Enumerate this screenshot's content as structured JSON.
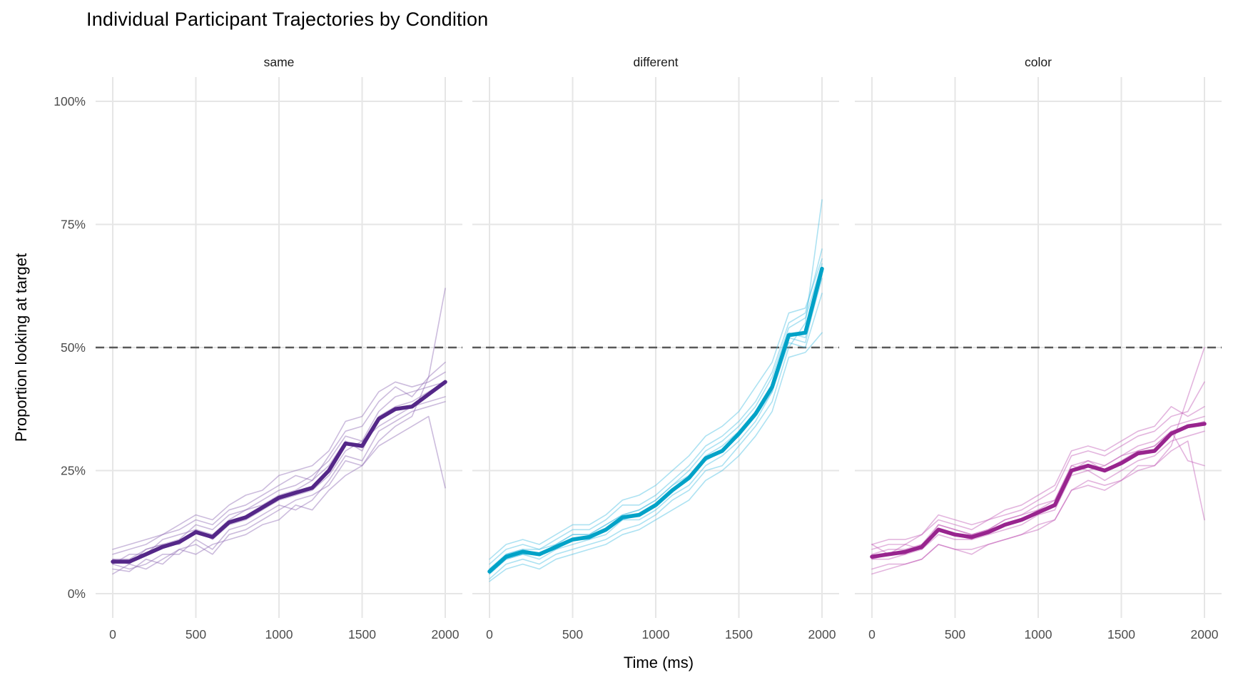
{
  "title": "Individual Participant Trajectories by Condition",
  "axes": {
    "x_label": "Time (ms)",
    "y_label": "Proportion looking at target",
    "x_ticks": [
      "0",
      "500",
      "1000",
      "1500",
      "2000"
    ],
    "x_tick_values": [
      0,
      500,
      1000,
      1500,
      2000
    ],
    "y_ticks": [
      "0%",
      "25%",
      "50%",
      "75%",
      "100%"
    ],
    "y_tick_values": [
      0,
      25,
      50,
      75,
      100
    ],
    "x_range": [
      0,
      2000
    ],
    "y_range": [
      0,
      100
    ]
  },
  "style": {
    "background": "#ffffff",
    "grid_color": "#e6e6e6",
    "tick_label_color": "#4d4d4d",
    "strip_label_color": "#1a1a1a",
    "title_color": "#000000",
    "reference_line_color": "#595959"
  },
  "chart_data": {
    "type": "line",
    "title": "Individual Participant Trajectories by Condition",
    "xlabel": "Time (ms)",
    "ylabel": "Proportion looking at target",
    "x": [
      0,
      100,
      200,
      300,
      400,
      500,
      600,
      700,
      800,
      900,
      1000,
      1100,
      1200,
      1300,
      1400,
      1500,
      1600,
      1700,
      1800,
      1900,
      2000
    ],
    "xlim": [
      0,
      2000
    ],
    "ylim_percent": [
      0,
      100
    ],
    "grid": true,
    "legend": false,
    "reference_line": {
      "value_percent": 50,
      "style": "dashed"
    },
    "facets": [
      {
        "label": "same",
        "mean_color": "#542788",
        "individual_color": "#8f6bb3",
        "mean_percent": [
          6.5,
          6.5,
          8,
          9.5,
          10.5,
          12.5,
          11.5,
          14.5,
          15.5,
          17.5,
          19.5,
          20.5,
          21.5,
          25,
          30.5,
          30,
          35.5,
          37.5,
          38,
          40.5,
          43
        ],
        "individuals_percent": [
          [
            5,
            4.5,
            7,
            6,
            9,
            10,
            8,
            12,
            13,
            15,
            17,
            19,
            20,
            22,
            27,
            26,
            31,
            34,
            36,
            44,
            62
          ],
          [
            8,
            9,
            10,
            12,
            13,
            15,
            14,
            17,
            18,
            20,
            22,
            24,
            23,
            28,
            33,
            34,
            39,
            42,
            40,
            44,
            47
          ],
          [
            6,
            5,
            6,
            8,
            8,
            11,
            9,
            13,
            14,
            16,
            18,
            17,
            19,
            23,
            28,
            27,
            33,
            35,
            37,
            38,
            39
          ],
          [
            9,
            10,
            11,
            12,
            14,
            16,
            15,
            18,
            20,
            21,
            24,
            25,
            26,
            29,
            35,
            36,
            41,
            43,
            42,
            43,
            45
          ],
          [
            4,
            6,
            5,
            7,
            9,
            8,
            10,
            11,
            12,
            14,
            15,
            18,
            17,
            21,
            24,
            26,
            30,
            32,
            34,
            36,
            21.5
          ],
          [
            7,
            7,
            9,
            10,
            11,
            14,
            13,
            16,
            17,
            19,
            21,
            22,
            24,
            27,
            32,
            31,
            37,
            40,
            41,
            42,
            43
          ],
          [
            6,
            8,
            8,
            11,
            12,
            13,
            12,
            15,
            17,
            18,
            20,
            21,
            23,
            26,
            31,
            29,
            36,
            38,
            39,
            41,
            43
          ],
          [
            7,
            6,
            9,
            10,
            10,
            13,
            11,
            14,
            15,
            17,
            19,
            20,
            21,
            24,
            29,
            31,
            34,
            36,
            38,
            39,
            40
          ]
        ]
      },
      {
        "label": "different",
        "mean_color": "#00a2c7",
        "individual_color": "#49bfe3",
        "mean_percent": [
          4.5,
          7.5,
          8.5,
          8,
          9.5,
          11,
          11.5,
          13,
          15.5,
          16,
          18,
          21,
          23.5,
          27.5,
          29,
          32.5,
          36.5,
          42,
          52.5,
          53,
          66
        ],
        "individuals_percent": [
          [
            3,
            6,
            7,
            6,
            8,
            9,
            10,
            11,
            13,
            14,
            16,
            19,
            21,
            25,
            26,
            30,
            34,
            39,
            50,
            55,
            80
          ],
          [
            6,
            9,
            10,
            9,
            11,
            13,
            13,
            15,
            18,
            18,
            20,
            23,
            26,
            30,
            32,
            35,
            39,
            45,
            55,
            57,
            70
          ],
          [
            4,
            7,
            8,
            7,
            9,
            10,
            11,
            12,
            15,
            15,
            17,
            20,
            22,
            26,
            28,
            31,
            35,
            41,
            51,
            50,
            61
          ],
          [
            7,
            10,
            11,
            10,
            12,
            14,
            14,
            16,
            19,
            20,
            22,
            25,
            28,
            32,
            34,
            37,
            42,
            47,
            57,
            58,
            68
          ],
          [
            2.5,
            5,
            6,
            5,
            7,
            8,
            9,
            10,
            12,
            13,
            15,
            17,
            19,
            23,
            25,
            28,
            32,
            37,
            48,
            49,
            53
          ],
          [
            5,
            8,
            9,
            8,
            10,
            12,
            12,
            14,
            16,
            17,
            19,
            22,
            25,
            29,
            31,
            34,
            38,
            44,
            54,
            56,
            67
          ],
          [
            4,
            7,
            8,
            8,
            9,
            11,
            11,
            13,
            15,
            16,
            18,
            21,
            24,
            28,
            30,
            33,
            37,
            42,
            53,
            52,
            64
          ],
          [
            5,
            8,
            9,
            9,
            10,
            12,
            12,
            14,
            16,
            17,
            19,
            22,
            24,
            27,
            29,
            32,
            36,
            41,
            52,
            51,
            65
          ]
        ]
      },
      {
        "label": "color",
        "mean_color": "#98248e",
        "individual_color": "#c25ab5",
        "mean_percent": [
          7.5,
          8,
          8.5,
          9.5,
          13,
          12,
          11.5,
          12.5,
          14,
          15,
          16.5,
          18,
          25,
          26,
          25,
          26.5,
          28.5,
          29,
          32.5,
          34,
          34.5
        ],
        "individuals_percent": [
          [
            5,
            6,
            6,
            7,
            10,
            9,
            9,
            10,
            11,
            12,
            14,
            15,
            21,
            22,
            21,
            23,
            25,
            26,
            30,
            40,
            50
          ],
          [
            9,
            10,
            10,
            12,
            15,
            14,
            13,
            15,
            16,
            17,
            19,
            21,
            28,
            29,
            28,
            30,
            32,
            33,
            36,
            37,
            43
          ],
          [
            7,
            7,
            8,
            9,
            12,
            11,
            11,
            12,
            13,
            14,
            16,
            17,
            24,
            25,
            23,
            25,
            27,
            28,
            31,
            32,
            33
          ],
          [
            10,
            11,
            11,
            12,
            16,
            15,
            14,
            15,
            17,
            18,
            20,
            22,
            29,
            30,
            29,
            31,
            33,
            34,
            38,
            36,
            38
          ],
          [
            4,
            5,
            6,
            7,
            10,
            9,
            8,
            10,
            11,
            12,
            13,
            15,
            21,
            23,
            22,
            23,
            26,
            26,
            29,
            31,
            15
          ],
          [
            8,
            9,
            9,
            10,
            14,
            13,
            12,
            13,
            15,
            16,
            17,
            19,
            26,
            27,
            26,
            28,
            30,
            31,
            34,
            35,
            36
          ],
          [
            7,
            8,
            8,
            10,
            13,
            12,
            11,
            13,
            14,
            15,
            17,
            18,
            25,
            27,
            25,
            27,
            29,
            30,
            33,
            34,
            35
          ],
          [
            10,
            8,
            10,
            9,
            14,
            13,
            12,
            13,
            15,
            16,
            18,
            19,
            26,
            25,
            26,
            28,
            29,
            30,
            33,
            27,
            26
          ]
        ]
      }
    ]
  }
}
